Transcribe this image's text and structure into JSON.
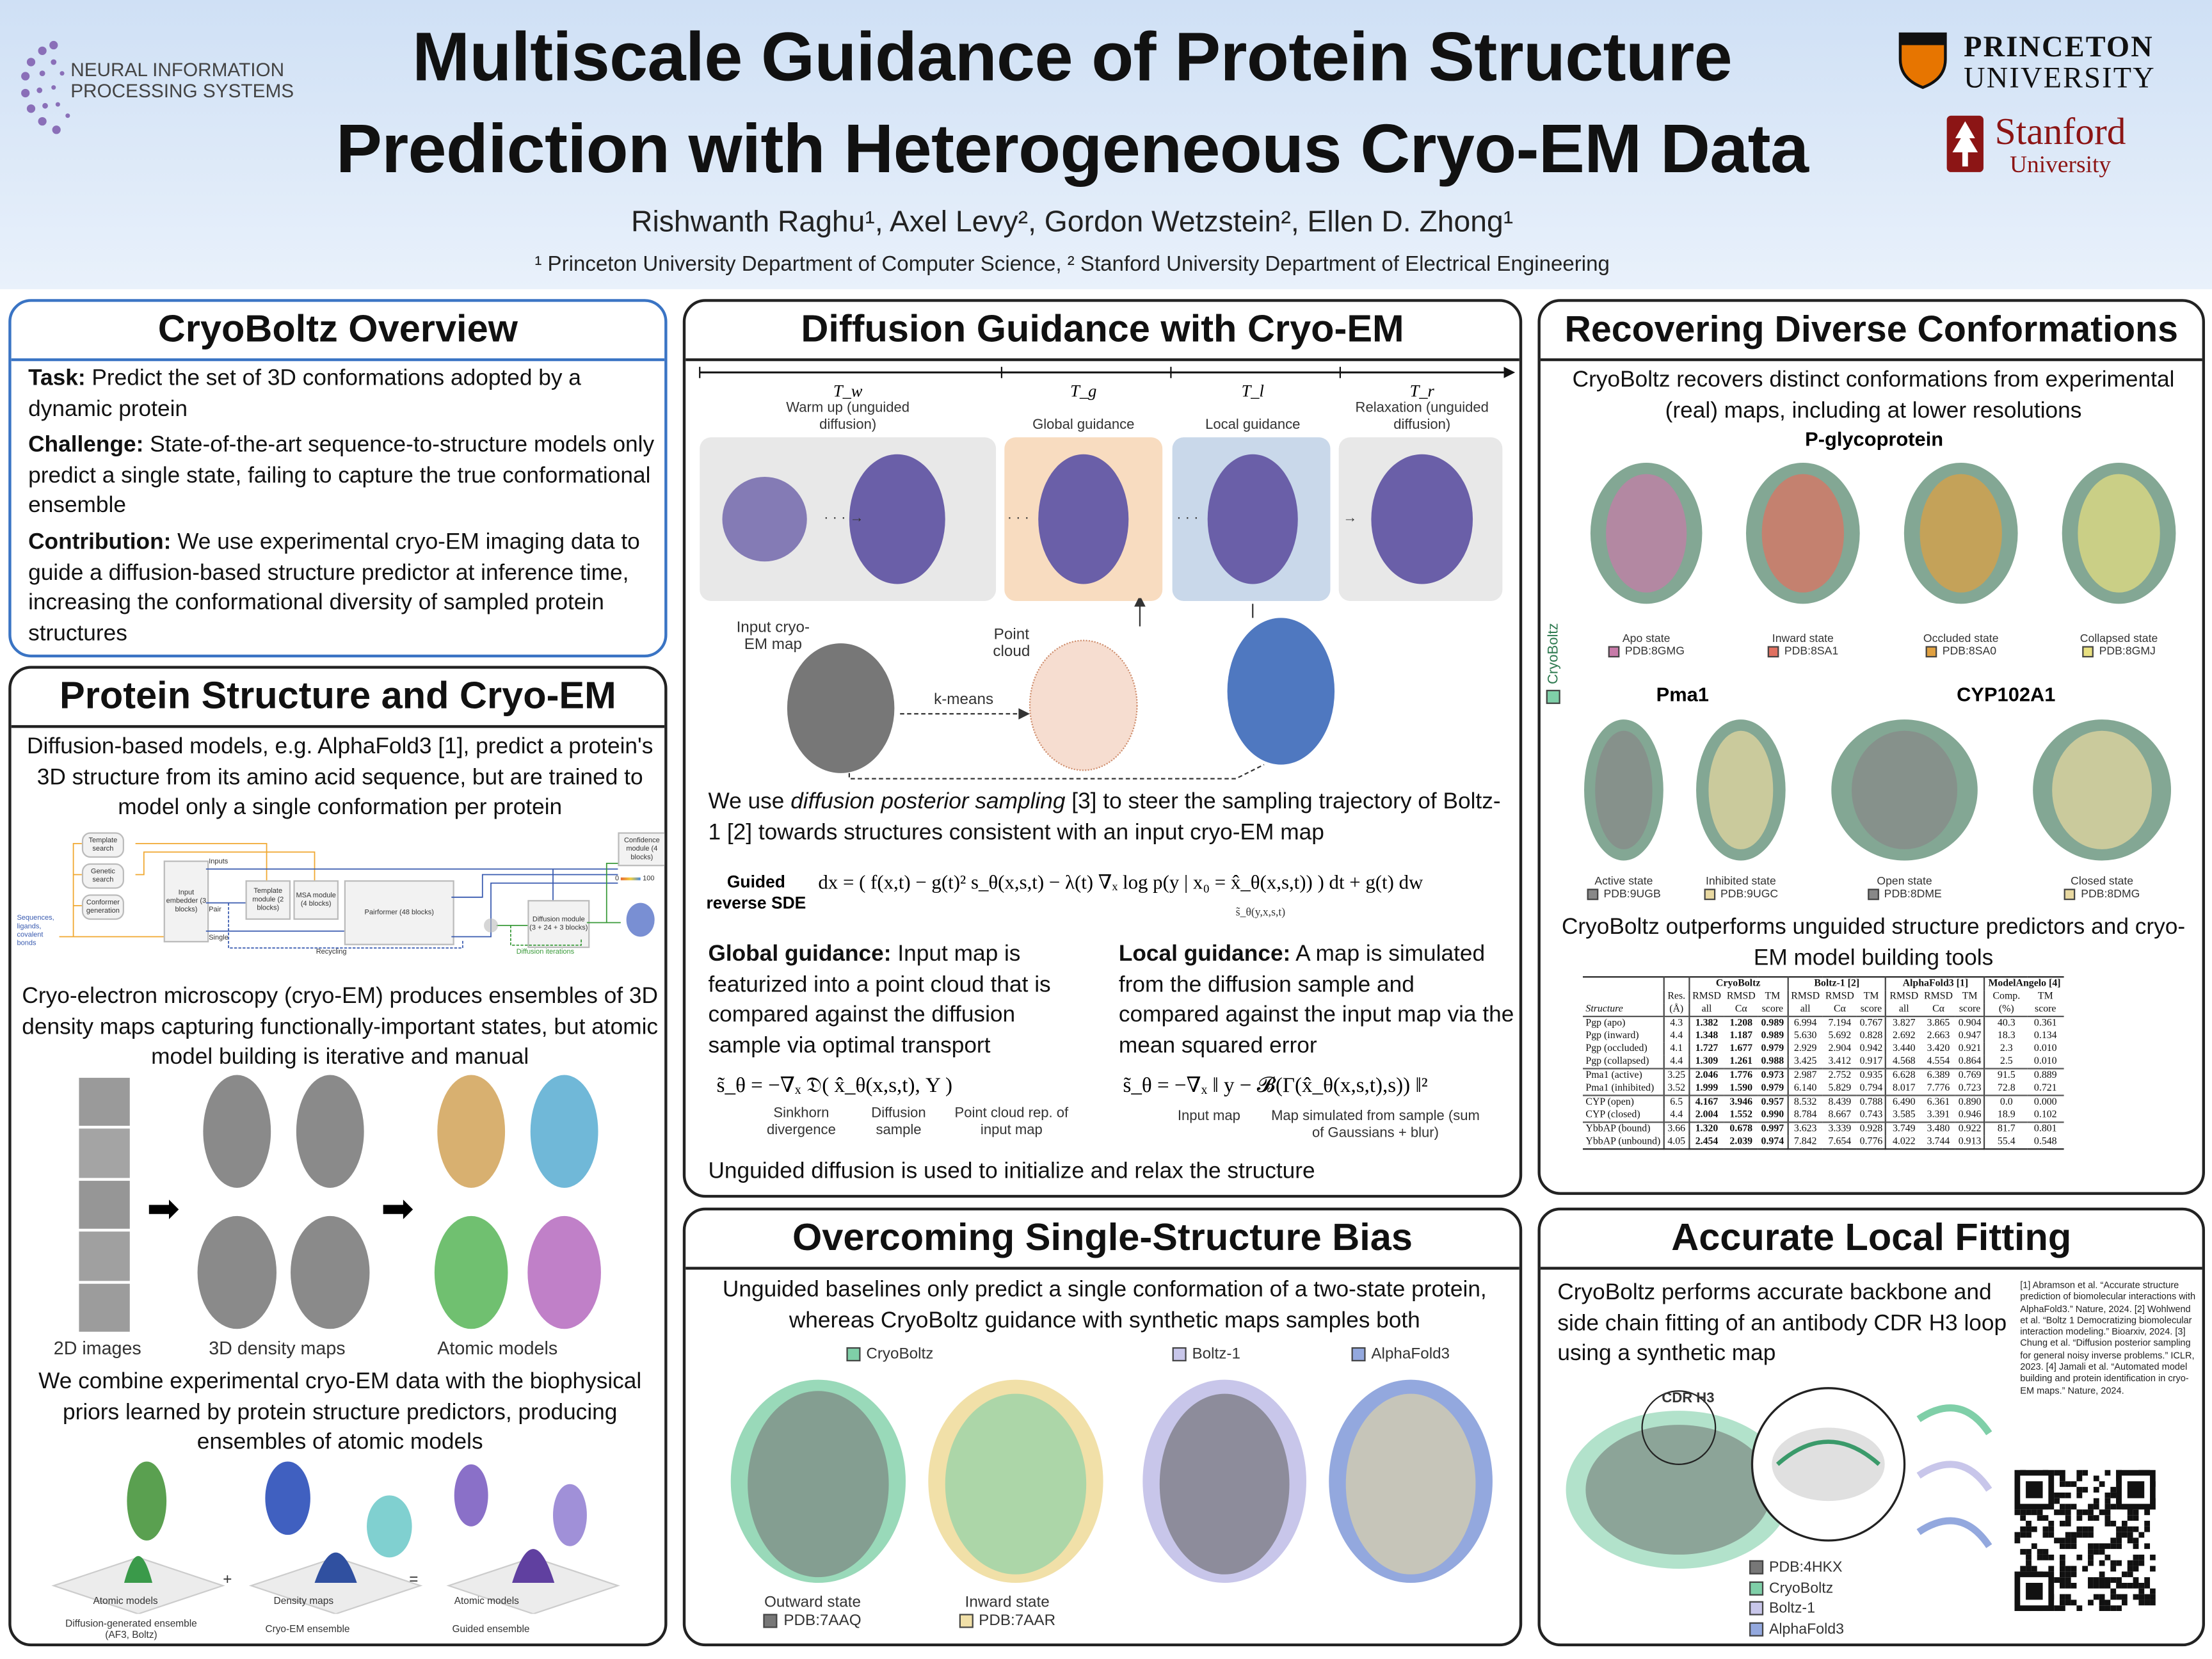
{
  "header": {
    "title_line1": "Multiscale Guidance of Protein Structure",
    "title_line2": "Prediction with Heterogeneous Cryo-EM Data",
    "authors": "Rishwanth Raghu¹, Axel Levy², Gordon Wetzstein², Ellen D. Zhong¹",
    "affiliations": "¹ Princeton University Department of Computer Science, ² Stanford University Department of Electrical Engineering",
    "logos": {
      "neurips_line1": "NEURAL INFORMATION",
      "neurips_line2": "PROCESSING SYSTEMS",
      "princeton_line1": "PRINCETON",
      "princeton_line2": "UNIVERSITY",
      "stanford_line1": "Stanford",
      "stanford_line2": "University"
    }
  },
  "overview": {
    "title": "CryoBoltz Overview",
    "task_label": "Task:",
    "task_text": " Predict the set of 3D conformations adopted by a dynamic protein",
    "challenge_label": "Challenge:",
    "challenge_text": " State-of-the-art sequence-to-structure models only predict a single state, failing to capture the true conformational ensemble",
    "contribution_label": "Contribution:",
    "contribution_text": " We use experimental cryo-EM imaging data to guide a diffusion-based structure predictor at inference time, increasing the conformational diversity of sampled protein structures"
  },
  "protein": {
    "title": "Protein Structure and Cryo-EM",
    "para1": "Diffusion-based models, e.g. AlphaFold3 [1], predict a protein's 3D structure from its amino acid sequence, but are trained to model only a single conformation per protein",
    "af3_diagram": {
      "inputs_label": "Sequences, ligands, covalent bonds",
      "template_search": "Template search",
      "genetic_search": "Genetic search",
      "conformer_generation": "Conformer generation",
      "input_embedder": "Input embedder (3 blocks)",
      "inputs": "Inputs",
      "pair": "Pair",
      "single": "Single",
      "template_module": "Template module (2 blocks)",
      "msa_module": "MSA module (4 blocks)",
      "pairformer": "Pairformer (48 blocks)",
      "diffusion_module": "Diffusion module (3 + 24 + 3 blocks)",
      "confidence_module": "Confidence module (4 blocks)",
      "scale_min": "0",
      "scale_max": "100",
      "recycling": "Recycling",
      "diffusion_iterations": "Diffusion iterations"
    },
    "para2": "Cryo-electron microscopy (cryo-EM) produces ensembles of 3D density maps capturing functionally-important states, but atomic model building is iterative and manual",
    "label_2d": "2D images",
    "label_3d": "3D density maps",
    "label_atomic": "Atomic models",
    "para3": "We combine experimental cryo-EM data with the biophysical priors learned by protein structure predictors, producing ensembles of atomic models",
    "eq_plus": "+",
    "eq_equals": "=",
    "surface1_label": "Atomic models",
    "surface2_label": "Density maps",
    "surface3_label": "Atomic models",
    "caption1": "Diffusion-generated ensemble (AF3, Boltz)",
    "caption2": "Cryo-EM ensemble",
    "caption3": "Guided ensemble"
  },
  "diffusion": {
    "title": "Diffusion Guidance with Cryo-EM",
    "stages": [
      {
        "symbol": "T_w",
        "label": "Warm up (unguided diffusion)",
        "color": "#e8e8e8"
      },
      {
        "symbol": "T_g",
        "label": "Global guidance",
        "color": "#f8dcc0"
      },
      {
        "symbol": "T_l",
        "label": "Local guidance",
        "color": "#c9d8ea"
      },
      {
        "symbol": "T_r",
        "label": "Relaxation (unguided diffusion)",
        "color": "#e8e8e8"
      }
    ],
    "input_map_label": "Input cryo-EM map",
    "point_cloud_label": "Point cloud",
    "kmeans_label": "k-means",
    "para_pre": "We use ",
    "para_em": "diffusion posterior sampling",
    "para_post": " [3] to steer the sampling trajectory of Boltz-1 [2] towards structures consistent with an input cryo-EM map",
    "sde_label": "Guided reverse SDE",
    "sde_equation": "dx = ( f(x,t) − g(t)² s_θ(x,s,t) − λ(t) ∇ₓ log p(y | x₀ = x̂_θ(x,s,t)) ) dt + g(t) dw",
    "sde_underbrace": "s̃_θ(y,x,s,t)",
    "global_label": "Global guidance:",
    "global_text": " Input map is featurized into a point cloud that is compared against the diffusion sample via optimal transport",
    "local_label": "Local guidance:",
    "local_text": " A map is simulated from the diffusion sample and compared against the input map via the mean squared error",
    "global_eq": "s̃_θ = −∇ₓ 𝔇( x̂_θ(x,s,t), Y )",
    "global_annot": [
      "Sinkhorn divergence",
      "Diffusion sample",
      "Point cloud rep. of input map"
    ],
    "local_eq": "s̃_θ = −∇ₓ ‖ y − 𝓑(Γ(x̂_θ(x,s,t),s)) ‖²",
    "local_annot": [
      "Input map",
      "Map simulated from sample (sum of Gaussians + blur)"
    ],
    "footer": "Unguided diffusion is used to initialize and relax the structure"
  },
  "bias": {
    "title": "Overcoming Single-Structure Bias",
    "text": "Unguided baselines only predict a single conformation of a two-state protein, whereas CryoBoltz guidance with synthetic maps samples both",
    "legend": [
      {
        "label": "CryoBoltz",
        "color": "#7fcfa8"
      },
      {
        "label": "Boltz-1",
        "color": "#c8c6ea"
      },
      {
        "label": "AlphaFold3",
        "color": "#93a8de"
      }
    ],
    "state1_name": "Outward state",
    "state1_pdb": "PDB:7AAQ",
    "state1_color": "#777777",
    "state2_name": "Inward state",
    "state2_pdb": "PDB:7AAR",
    "state2_color": "#f1e0a8"
  },
  "recover": {
    "title": "Recovering Diverse Conformations",
    "text": "CryoBoltz recovers distinct conformations from experimental (real) maps, including at lower resolutions",
    "side_label": "CryoBoltz",
    "pgp_title": "P-glycoprotein",
    "pgp_states": [
      {
        "name": "Apo state",
        "pdb": "PDB:8GMG",
        "color": "#c77aa8"
      },
      {
        "name": "Inward state",
        "pdb": "PDB:8SA1",
        "color": "#e07060"
      },
      {
        "name": "Occluded state",
        "pdb": "PDB:8SA0",
        "color": "#e0a040"
      },
      {
        "name": "Collapsed state",
        "pdb": "PDB:8GMJ",
        "color": "#e8e080"
      }
    ],
    "pma1_title": "Pma1",
    "pma1_states": [
      {
        "name": "Active state",
        "pdb": "PDB:9UGB",
        "color": "#888888"
      },
      {
        "name": "Inhibited state",
        "pdb": "PDB:9UGC",
        "color": "#e8d8a0"
      }
    ],
    "cyp_title": "CYP102A1",
    "cyp_states": [
      {
        "name": "Open state",
        "pdb": "PDB:8DME",
        "color": "#888888"
      },
      {
        "name": "Closed state",
        "pdb": "PDB:8DMG",
        "color": "#e8d8a0"
      }
    ],
    "table_caption": "CryoBoltz outperforms unguided structure predictors and cryo-EM model building tools",
    "table": {
      "groups": [
        "CryoBoltz",
        "Boltz-1 [2]",
        "AlphaFold3 [1]",
        "ModelAngelo [4]"
      ],
      "columns": [
        [
          "Structure",
          "",
          ""
        ],
        [
          "Res.",
          "(Å)"
        ],
        [
          "RMSD",
          "all"
        ],
        [
          "RMSD",
          "Cα"
        ],
        [
          "TM",
          "score"
        ],
        [
          "RMSD",
          "all"
        ],
        [
          "RMSD",
          "Cα"
        ],
        [
          "TM",
          "score"
        ],
        [
          "RMSD",
          "all"
        ],
        [
          "RMSD",
          "Cα"
        ],
        [
          "TM",
          "score"
        ],
        [
          "Comp.",
          "(%)"
        ],
        [
          "TM",
          "score"
        ]
      ],
      "row_groups": [
        [
          [
            "Pgp (apo)",
            "4.3",
            "1.382",
            "1.208",
            "0.989",
            "6.994",
            "7.194",
            "0.767",
            "3.827",
            "3.865",
            "0.904",
            "40.3",
            "0.361"
          ],
          [
            "Pgp (inward)",
            "4.4",
            "1.348",
            "1.187",
            "0.989",
            "5.630",
            "5.692",
            "0.828",
            "2.692",
            "2.663",
            "0.947",
            "18.3",
            "0.134"
          ],
          [
            "Pgp (occluded)",
            "4.1",
            "1.727",
            "1.677",
            "0.979",
            "2.929",
            "2.904",
            "0.942",
            "3.440",
            "3.420",
            "0.921",
            "2.3",
            "0.010"
          ],
          [
            "Pgp (collapsed)",
            "4.4",
            "1.309",
            "1.261",
            "0.988",
            "3.425",
            "3.412",
            "0.917",
            "4.568",
            "4.554",
            "0.864",
            "2.5",
            "0.010"
          ]
        ],
        [
          [
            "Pma1 (active)",
            "3.25",
            "2.046",
            "1.776",
            "0.973",
            "2.987",
            "2.752",
            "0.935",
            "6.628",
            "6.389",
            "0.769",
            "91.5",
            "0.889"
          ],
          [
            "Pma1 (inhibited)",
            "3.52",
            "1.999",
            "1.590",
            "0.979",
            "6.140",
            "5.829",
            "0.794",
            "8.017",
            "7.776",
            "0.723",
            "72.8",
            "0.721"
          ]
        ],
        [
          [
            "CYP (open)",
            "6.5",
            "4.167",
            "3.946",
            "0.957",
            "8.532",
            "8.439",
            "0.788",
            "6.490",
            "6.361",
            "0.890",
            "0.0",
            "0.000"
          ],
          [
            "CYP (closed)",
            "4.4",
            "2.004",
            "1.552",
            "0.990",
            "8.784",
            "8.667",
            "0.743",
            "3.585",
            "3.391",
            "0.946",
            "18.9",
            "0.102"
          ]
        ],
        [
          [
            "YbbAP (bound)",
            "3.66",
            "1.320",
            "0.678",
            "0.997",
            "3.623",
            "3.339",
            "0.928",
            "3.749",
            "3.480",
            "0.922",
            "81.7",
            "0.801"
          ],
          [
            "YbbAP (unbound)",
            "4.05",
            "2.454",
            "2.039",
            "0.974",
            "7.842",
            "7.654",
            "0.776",
            "4.022",
            "3.744",
            "0.913",
            "55.4",
            "0.548"
          ]
        ]
      ]
    }
  },
  "fitting": {
    "title": "Accurate Local Fitting",
    "text": "CryoBoltz performs accurate backbone and side chain fitting of an antibody CDR H3 loop using a synthetic map",
    "cdr_label": "CDR H3",
    "legend": [
      {
        "label": "PDB:4HKX",
        "color": "#777777"
      },
      {
        "label": "CryoBoltz",
        "color": "#7fcfa8"
      },
      {
        "label": "Boltz-1",
        "color": "#c8c6ea"
      },
      {
        "label": "AlphaFold3",
        "color": "#93a8de"
      }
    ],
    "references": "[1] Abramson et al. “Accurate structure prediction of biomolecular interactions with AlphaFold3.” Nature, 2024. [2] Wohlwend et al. “Boltz 1 Democratizing biomolecular interaction modeling.” Bioarxiv, 2024. [3] Chung et al. “Diffusion posterior sampling for general noisy inverse problems.” ICLR, 2023. [4] Jamali et al. “Automated model building and protein identification in cryo-EM maps.” Nature, 2024."
  },
  "colors": {
    "header_bg": "#dce8f7",
    "overview_border": "#3a74c4",
    "protein_purple": "#6a5fa8",
    "map_blue": "#4f78c0",
    "annot_orange": "#e8762a",
    "annot_blue": "#3a8ad8",
    "annot_red": "#d03030",
    "princeton_orange": "#e77500",
    "stanford_red": "#8c1515"
  }
}
